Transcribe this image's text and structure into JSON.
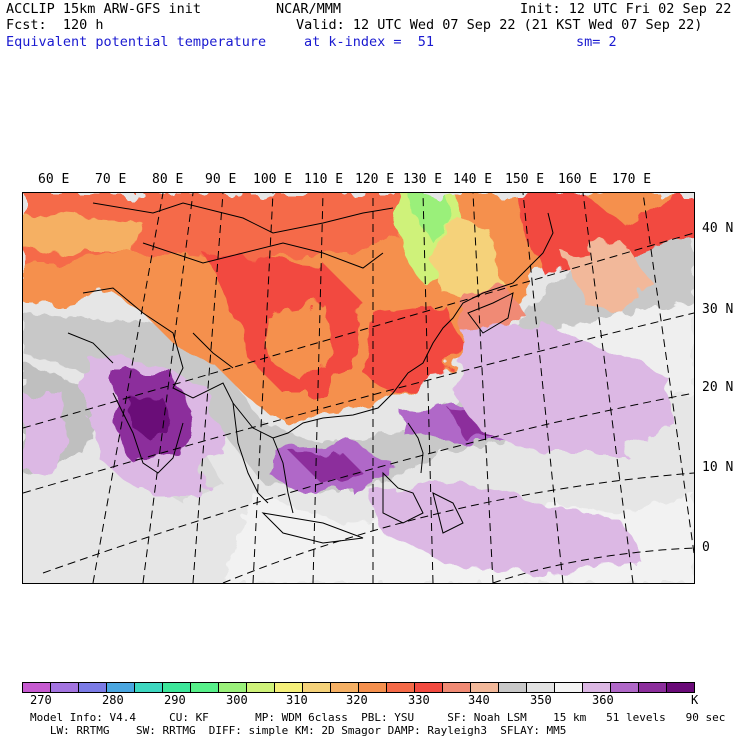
{
  "header": {
    "model_line": "ACCLIP 15km ARW-GFS init",
    "forecast_line": "Fcst:  120 h",
    "center": "NCAR/MMM",
    "init": "Init: 12 UTC Fri 02 Sep 22",
    "valid": "Valid: 12 UTC Wed 07 Sep 22 (21 KST Wed 07 Sep 22)",
    "field": "Equivalent potential temperature",
    "level": "at k-index =  51",
    "smoothing": "sm= 2"
  },
  "map": {
    "lon_labels": [
      "60 E",
      "70 E",
      "80 E",
      "90 E",
      "100 E",
      "110 E",
      "120 E",
      "130 E",
      "140 E",
      "150 E",
      "160 E",
      "170 E"
    ],
    "lat_labels": [
      "40 N",
      "30 N",
      "20 N",
      "10 N",
      "0"
    ]
  },
  "colorbar": {
    "unit": "K",
    "labels": [
      "270",
      "280",
      "290",
      "300",
      "310",
      "320",
      "330",
      "340",
      "350",
      "360"
    ],
    "colors": [
      "#c65ad0",
      "#a374e0",
      "#7b7be6",
      "#4aa6e0",
      "#3dd7c0",
      "#3ce69a",
      "#57f08a",
      "#9af07a",
      "#cff27a",
      "#f5f07a",
      "#f5d27a",
      "#f5b064",
      "#f5904e",
      "#f56a48",
      "#f24a40",
      "#f08a74",
      "#f2b89a",
      "#c8c8c8",
      "#e2e2e2",
      "#f4f4f4",
      "#dcb8e4",
      "#b068c8",
      "#8c2e9c",
      "#6a0a78"
    ]
  },
  "footer": {
    "line1": "Model Info: V4.4     CU: KF       MP: WDM 6class  PBL: YSU     SF: Noah LSM    15 km   51 levels   90 sec",
    "line2": "   LW: RRTMG    SW: RRTMG  DIFF: simple KM: 2D Smagor DAMP: Rayleigh3  SFLAY: MM5"
  }
}
